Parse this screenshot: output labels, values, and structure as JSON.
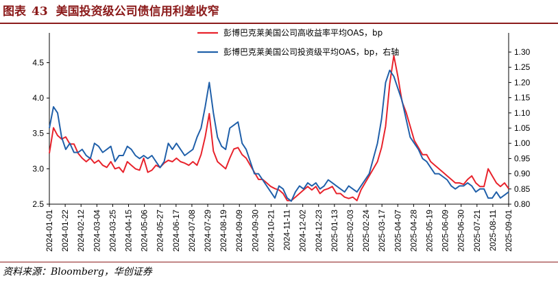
{
  "header": {
    "figure_label": "图表",
    "figure_number": "43",
    "title": "美国投资级公司债信用利差收窄"
  },
  "footer": {
    "source": "资料来源：Bloomberg，华创证券"
  },
  "colors": {
    "hy": "#e8222b",
    "ig": "#1f5fa9",
    "accent": "#8b1a1a"
  },
  "chart_data": {
    "type": "line",
    "title": "美国投资级公司债信用利差收窄",
    "legend_placement": "top-right",
    "grid": false,
    "x_tick_labels": [
      "2024-01-01",
      "2024-01-22",
      "2024-02-12",
      "2024-03-04",
      "2024-03-25",
      "2024-04-15",
      "2024-05-06",
      "2024-05-27",
      "2024-06-17",
      "2024-07-08",
      "2024-07-29",
      "2024-08-19",
      "2024-09-09",
      "2024-09-30",
      "2024-10-21",
      "2024-11-11",
      "2024-12-02",
      "2024-12-23",
      "2025-01-13",
      "2025-02-03",
      "2025-02-24",
      "2025-03-17",
      "2025-04-07",
      "2025-04-28",
      "2025-05-19",
      "2025-06-09",
      "2025-06-30",
      "2025-07-21",
      "2025-08-11",
      "2025-09-01"
    ],
    "y_left": {
      "ticks": [
        "2.5",
        "3.0",
        "3.5",
        "4.0",
        "4.5"
      ],
      "range": [
        2.5,
        4.65
      ]
    },
    "y_right": {
      "ticks": [
        "0.80",
        "0.85",
        "0.90",
        "0.95",
        "1.00",
        "1.05",
        "1.10",
        "1.15",
        "1.20",
        "1.25",
        "1.30"
      ],
      "range": [
        0.8,
        1.3
      ]
    },
    "series": [
      {
        "name": "彭博巴克莱美国公司高收益率平均OAS，bp",
        "axis": "left",
        "values": [
          3.22,
          3.58,
          3.47,
          3.42,
          3.45,
          3.35,
          3.35,
          3.22,
          3.15,
          3.1,
          3.15,
          3.08,
          3.12,
          3.05,
          3.02,
          3.1,
          3.0,
          3.02,
          2.95,
          3.1,
          3.05,
          3.0,
          2.98,
          3.15,
          2.95,
          2.98,
          3.05,
          3.02,
          3.08,
          3.12,
          3.1,
          3.15,
          3.1,
          3.08,
          3.05,
          3.1,
          3.05,
          3.2,
          3.45,
          3.78,
          3.25,
          3.1,
          3.05,
          3.0,
          3.15,
          3.28,
          3.3,
          3.2,
          3.15,
          3.05,
          2.95,
          2.85,
          2.85,
          2.8,
          2.75,
          2.72,
          2.7,
          2.65,
          2.55,
          2.55,
          2.6,
          2.65,
          2.7,
          2.75,
          2.7,
          2.75,
          2.65,
          2.7,
          2.72,
          2.75,
          2.65,
          2.65,
          2.6,
          2.58,
          2.6,
          2.55,
          2.7,
          2.8,
          2.9,
          3.0,
          3.1,
          3.3,
          3.6,
          4.2,
          4.6,
          4.3,
          3.95,
          3.8,
          3.6,
          3.4,
          3.3,
          3.2,
          3.2,
          3.1,
          3.05,
          3.0,
          2.95,
          2.9,
          2.85,
          2.8,
          2.8,
          2.78,
          2.85,
          2.9,
          2.8,
          2.75,
          2.75,
          3.0,
          2.9,
          2.8,
          2.75,
          2.8,
          2.72
        ]
      },
      {
        "name": "彭博巴克莱美国公司投资级平均OAS，bp，右轴",
        "axis": "right",
        "values": [
          1.05,
          1.12,
          1.1,
          1.02,
          0.98,
          1.0,
          0.97,
          0.97,
          0.98,
          0.96,
          0.95,
          1.0,
          0.99,
          0.97,
          0.98,
          0.99,
          0.94,
          0.96,
          0.96,
          0.99,
          0.98,
          0.96,
          0.95,
          0.96,
          0.95,
          0.96,
          0.94,
          0.92,
          0.94,
          1.0,
          0.98,
          1.0,
          0.98,
          0.96,
          0.97,
          0.98,
          1.02,
          1.05,
          1.12,
          1.2,
          1.1,
          1.02,
          0.99,
          0.98,
          1.05,
          1.06,
          1.07,
          1.0,
          0.98,
          0.94,
          0.9,
          0.9,
          0.88,
          0.86,
          0.84,
          0.82,
          0.86,
          0.85,
          0.82,
          0.81,
          0.84,
          0.86,
          0.85,
          0.87,
          0.86,
          0.87,
          0.85,
          0.86,
          0.88,
          0.87,
          0.86,
          0.85,
          0.84,
          0.86,
          0.85,
          0.84,
          0.86,
          0.88,
          0.9,
          0.95,
          1.0,
          1.08,
          1.2,
          1.24,
          1.22,
          1.18,
          1.14,
          1.08,
          1.02,
          1.0,
          0.98,
          0.95,
          0.94,
          0.92,
          0.9,
          0.9,
          0.89,
          0.88,
          0.86,
          0.85,
          0.86,
          0.86,
          0.87,
          0.86,
          0.84,
          0.85,
          0.85,
          0.82,
          0.82,
          0.84,
          0.82,
          0.83,
          0.84
        ]
      }
    ]
  }
}
